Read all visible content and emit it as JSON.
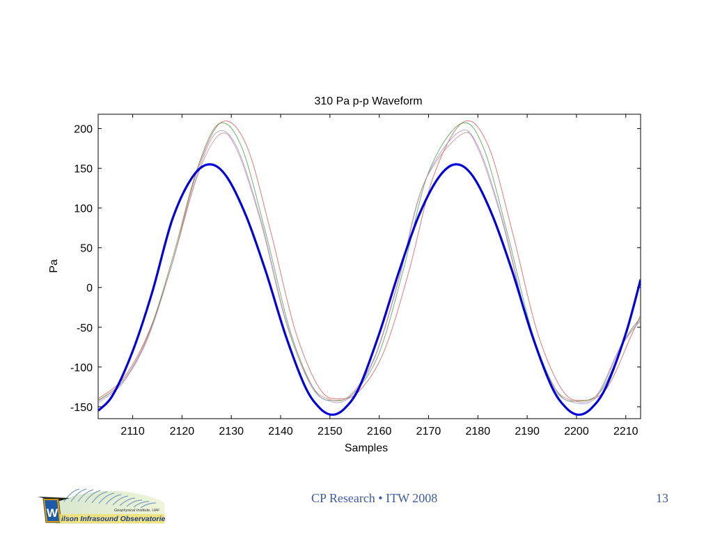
{
  "colors": {
    "primary_series": "#0000dd",
    "footer_text": "#3d5aa5"
  },
  "footer": {
    "center": "CP Research • ITW 2008",
    "page": "13"
  },
  "logo": {
    "line1": "Geophysical Institute, UAF",
    "line2": "ilson Infrasound Observatories",
    "letter": "W"
  },
  "chart_data": {
    "type": "line",
    "title": "310 Pa p-p Waveform",
    "xlabel": "Samples",
    "ylabel": "Pa",
    "xlim": [
      2103,
      2213
    ],
    "ylim": [
      -165,
      218
    ],
    "xticks": [
      2110,
      2120,
      2130,
      2140,
      2150,
      2160,
      2170,
      2180,
      2190,
      2200,
      2210
    ],
    "yticks": [
      -150,
      -100,
      -50,
      0,
      50,
      100,
      150,
      200
    ],
    "grid": false,
    "series": [
      {
        "color": "#0000dd",
        "x": [
          2103,
          2106,
          2110,
          2114,
          2118,
          2122,
          2125.5,
          2129,
          2133,
          2137,
          2141,
          2145,
          2148,
          2150.5,
          2153,
          2156,
          2160,
          2164,
          2168,
          2172,
          2175.5,
          2179,
          2183,
          2187,
          2191,
          2195,
          2198,
          2200.5,
          2203,
          2206,
          2210,
          2213
        ],
        "y": [
          -155,
          -135,
          -80,
          -5,
          85,
          138,
          155,
          140,
          90,
          20,
          -60,
          -125,
          -152,
          -160,
          -152,
          -125,
          -58,
          20,
          90,
          138,
          155,
          140,
          90,
          20,
          -60,
          -125,
          -152,
          -160,
          -152,
          -125,
          -58,
          10
        ]
      },
      {
        "color": "#e05050",
        "x": [
          2103,
          2108,
          2113,
          2118,
          2123,
          2128,
          2133,
          2138,
          2143,
          2148,
          2152,
          2156,
          2161,
          2166,
          2171,
          2177,
          2182,
          2187,
          2192,
          2197,
          2201,
          2206,
          2211,
          2213
        ],
        "y": [
          -140,
          -115,
          -60,
          30,
          145,
          208,
          180,
          70,
          -55,
          -128,
          -140,
          -130,
          -80,
          20,
          140,
          208,
          180,
          70,
          -55,
          -128,
          -142,
          -128,
          -62,
          -35
        ]
      },
      {
        "color": "#40a040",
        "x": [
          2103,
          2108,
          2113,
          2118,
          2123,
          2127.5,
          2132,
          2137,
          2142,
          2147,
          2151,
          2155,
          2160,
          2165,
          2170,
          2176.5,
          2181,
          2186,
          2191,
          2196,
          2200,
          2205,
          2210,
          2213
        ],
        "y": [
          -142,
          -118,
          -62,
          35,
          148,
          206,
          178,
          68,
          -56,
          -130,
          -142,
          -132,
          -82,
          25,
          145,
          206,
          178,
          68,
          -56,
          -130,
          -143,
          -130,
          -64,
          -38
        ]
      },
      {
        "color": "#9090e8",
        "x": [
          2103,
          2108,
          2113,
          2118,
          2123,
          2127,
          2131,
          2136,
          2141,
          2146,
          2150,
          2154,
          2159,
          2164,
          2169,
          2176,
          2180,
          2185,
          2190,
          2195,
          2199,
          2204,
          2209,
          2213
        ],
        "y": [
          -145,
          -120,
          -65,
          30,
          140,
          195,
          178,
          85,
          -40,
          -122,
          -143,
          -138,
          -90,
          10,
          130,
          195,
          178,
          85,
          -40,
          -122,
          -144,
          -138,
          -75,
          -40
        ]
      },
      {
        "color": "#d08080",
        "x": [
          2103,
          2108,
          2113,
          2118,
          2123,
          2127.5,
          2131,
          2136,
          2141,
          2146,
          2150,
          2154,
          2159,
          2164,
          2169,
          2176.5,
          2180,
          2185,
          2190,
          2195,
          2199,
          2204,
          2209,
          2213
        ],
        "y": [
          -143,
          -118,
          -63,
          30,
          138,
          192,
          175,
          82,
          -42,
          -120,
          -141,
          -136,
          -88,
          12,
          130,
          192,
          175,
          82,
          -42,
          -120,
          -142,
          -136,
          -73,
          -42
        ]
      }
    ]
  }
}
